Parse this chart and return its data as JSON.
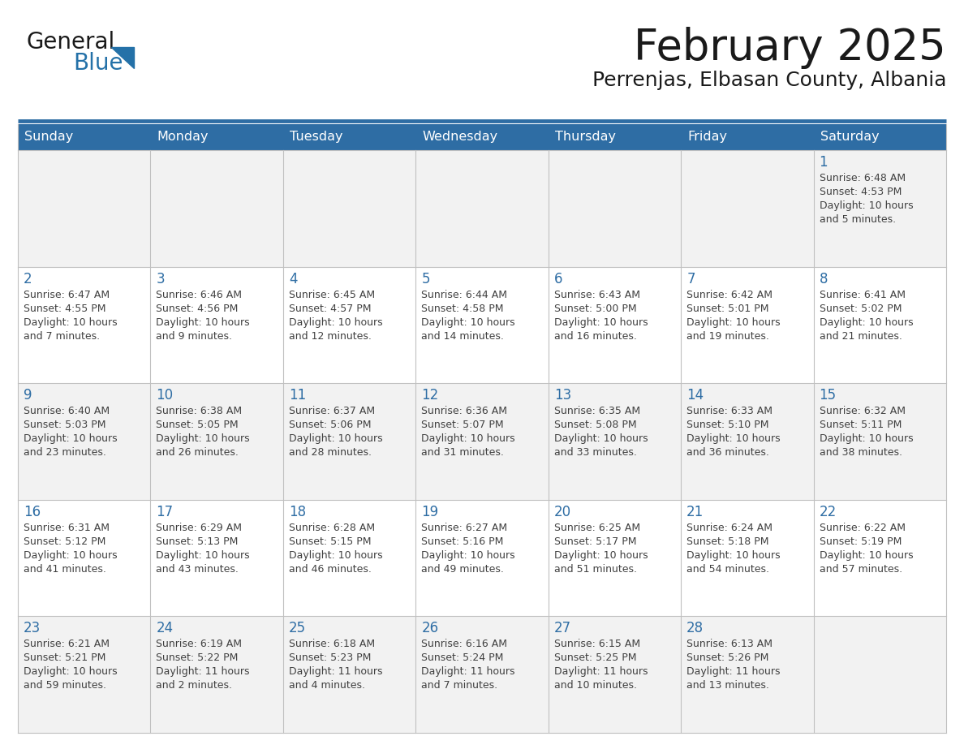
{
  "title": "February 2025",
  "subtitle": "Perrenjas, Elbasan County, Albania",
  "header_bg": "#2E6DA4",
  "header_text_color": "#FFFFFF",
  "cell_bg_row0": "#F2F2F2",
  "cell_bg_row1": "#FFFFFF",
  "cell_bg_row2": "#F2F2F2",
  "cell_bg_row3": "#FFFFFF",
  "cell_bg_row4": "#F2F2F2",
  "day_number_color": "#2E6DA4",
  "detail_text_color": "#404040",
  "grid_line_color": "#C0C0C0",
  "days_of_week": [
    "Sunday",
    "Monday",
    "Tuesday",
    "Wednesday",
    "Thursday",
    "Friday",
    "Saturday"
  ],
  "weeks": [
    [
      {
        "date": "",
        "sunrise": "",
        "sunset": "",
        "daylight": ""
      },
      {
        "date": "",
        "sunrise": "",
        "sunset": "",
        "daylight": ""
      },
      {
        "date": "",
        "sunrise": "",
        "sunset": "",
        "daylight": ""
      },
      {
        "date": "",
        "sunrise": "",
        "sunset": "",
        "daylight": ""
      },
      {
        "date": "",
        "sunrise": "",
        "sunset": "",
        "daylight": ""
      },
      {
        "date": "",
        "sunrise": "",
        "sunset": "",
        "daylight": ""
      },
      {
        "date": "1",
        "sunrise": "Sunrise: 6:48 AM",
        "sunset": "Sunset: 4:53 PM",
        "daylight": "Daylight: 10 hours\nand 5 minutes."
      }
    ],
    [
      {
        "date": "2",
        "sunrise": "Sunrise: 6:47 AM",
        "sunset": "Sunset: 4:55 PM",
        "daylight": "Daylight: 10 hours\nand 7 minutes."
      },
      {
        "date": "3",
        "sunrise": "Sunrise: 6:46 AM",
        "sunset": "Sunset: 4:56 PM",
        "daylight": "Daylight: 10 hours\nand 9 minutes."
      },
      {
        "date": "4",
        "sunrise": "Sunrise: 6:45 AM",
        "sunset": "Sunset: 4:57 PM",
        "daylight": "Daylight: 10 hours\nand 12 minutes."
      },
      {
        "date": "5",
        "sunrise": "Sunrise: 6:44 AM",
        "sunset": "Sunset: 4:58 PM",
        "daylight": "Daylight: 10 hours\nand 14 minutes."
      },
      {
        "date": "6",
        "sunrise": "Sunrise: 6:43 AM",
        "sunset": "Sunset: 5:00 PM",
        "daylight": "Daylight: 10 hours\nand 16 minutes."
      },
      {
        "date": "7",
        "sunrise": "Sunrise: 6:42 AM",
        "sunset": "Sunset: 5:01 PM",
        "daylight": "Daylight: 10 hours\nand 19 minutes."
      },
      {
        "date": "8",
        "sunrise": "Sunrise: 6:41 AM",
        "sunset": "Sunset: 5:02 PM",
        "daylight": "Daylight: 10 hours\nand 21 minutes."
      }
    ],
    [
      {
        "date": "9",
        "sunrise": "Sunrise: 6:40 AM",
        "sunset": "Sunset: 5:03 PM",
        "daylight": "Daylight: 10 hours\nand 23 minutes."
      },
      {
        "date": "10",
        "sunrise": "Sunrise: 6:38 AM",
        "sunset": "Sunset: 5:05 PM",
        "daylight": "Daylight: 10 hours\nand 26 minutes."
      },
      {
        "date": "11",
        "sunrise": "Sunrise: 6:37 AM",
        "sunset": "Sunset: 5:06 PM",
        "daylight": "Daylight: 10 hours\nand 28 minutes."
      },
      {
        "date": "12",
        "sunrise": "Sunrise: 6:36 AM",
        "sunset": "Sunset: 5:07 PM",
        "daylight": "Daylight: 10 hours\nand 31 minutes."
      },
      {
        "date": "13",
        "sunrise": "Sunrise: 6:35 AM",
        "sunset": "Sunset: 5:08 PM",
        "daylight": "Daylight: 10 hours\nand 33 minutes."
      },
      {
        "date": "14",
        "sunrise": "Sunrise: 6:33 AM",
        "sunset": "Sunset: 5:10 PM",
        "daylight": "Daylight: 10 hours\nand 36 minutes."
      },
      {
        "date": "15",
        "sunrise": "Sunrise: 6:32 AM",
        "sunset": "Sunset: 5:11 PM",
        "daylight": "Daylight: 10 hours\nand 38 minutes."
      }
    ],
    [
      {
        "date": "16",
        "sunrise": "Sunrise: 6:31 AM",
        "sunset": "Sunset: 5:12 PM",
        "daylight": "Daylight: 10 hours\nand 41 minutes."
      },
      {
        "date": "17",
        "sunrise": "Sunrise: 6:29 AM",
        "sunset": "Sunset: 5:13 PM",
        "daylight": "Daylight: 10 hours\nand 43 minutes."
      },
      {
        "date": "18",
        "sunrise": "Sunrise: 6:28 AM",
        "sunset": "Sunset: 5:15 PM",
        "daylight": "Daylight: 10 hours\nand 46 minutes."
      },
      {
        "date": "19",
        "sunrise": "Sunrise: 6:27 AM",
        "sunset": "Sunset: 5:16 PM",
        "daylight": "Daylight: 10 hours\nand 49 minutes."
      },
      {
        "date": "20",
        "sunrise": "Sunrise: 6:25 AM",
        "sunset": "Sunset: 5:17 PM",
        "daylight": "Daylight: 10 hours\nand 51 minutes."
      },
      {
        "date": "21",
        "sunrise": "Sunrise: 6:24 AM",
        "sunset": "Sunset: 5:18 PM",
        "daylight": "Daylight: 10 hours\nand 54 minutes."
      },
      {
        "date": "22",
        "sunrise": "Sunrise: 6:22 AM",
        "sunset": "Sunset: 5:19 PM",
        "daylight": "Daylight: 10 hours\nand 57 minutes."
      }
    ],
    [
      {
        "date": "23",
        "sunrise": "Sunrise: 6:21 AM",
        "sunset": "Sunset: 5:21 PM",
        "daylight": "Daylight: 10 hours\nand 59 minutes."
      },
      {
        "date": "24",
        "sunrise": "Sunrise: 6:19 AM",
        "sunset": "Sunset: 5:22 PM",
        "daylight": "Daylight: 11 hours\nand 2 minutes."
      },
      {
        "date": "25",
        "sunrise": "Sunrise: 6:18 AM",
        "sunset": "Sunset: 5:23 PM",
        "daylight": "Daylight: 11 hours\nand 4 minutes."
      },
      {
        "date": "26",
        "sunrise": "Sunrise: 6:16 AM",
        "sunset": "Sunset: 5:24 PM",
        "daylight": "Daylight: 11 hours\nand 7 minutes."
      },
      {
        "date": "27",
        "sunrise": "Sunrise: 6:15 AM",
        "sunset": "Sunset: 5:25 PM",
        "daylight": "Daylight: 11 hours\nand 10 minutes."
      },
      {
        "date": "28",
        "sunrise": "Sunrise: 6:13 AM",
        "sunset": "Sunset: 5:26 PM",
        "daylight": "Daylight: 11 hours\nand 13 minutes."
      },
      {
        "date": "",
        "sunrise": "",
        "sunset": "",
        "daylight": ""
      }
    ]
  ],
  "logo_text1": "General",
  "logo_text2": "Blue",
  "logo_color1": "#1a1a1a",
  "logo_color2": "#2471A8",
  "logo_triangle_color": "#2471A8",
  "title_fontsize": 38,
  "subtitle_fontsize": 18,
  "header_fontsize": 11.5,
  "date_fontsize": 12,
  "detail_fontsize": 9
}
